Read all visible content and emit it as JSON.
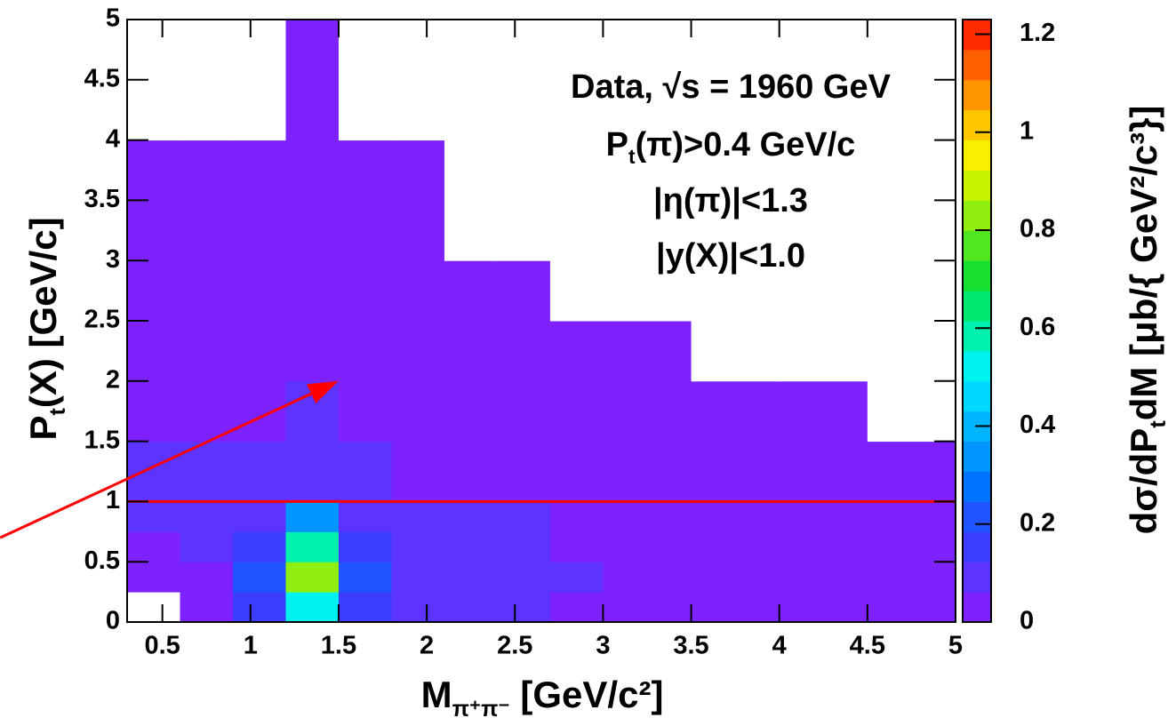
{
  "chart_data": {
    "type": "heatmap",
    "x_label": [
      {
        "text": "M"
      },
      {
        "text": "π⁺π⁻",
        "sub": true
      },
      {
        "text": "  [GeV/c²]"
      }
    ],
    "y_label": [
      {
        "text": "P"
      },
      {
        "text": "t",
        "sub": true
      },
      {
        "text": "(X)  [GeV/c]"
      }
    ],
    "z_label": [
      {
        "text": "dσ/dP"
      },
      {
        "text": "t",
        "sub": true
      },
      {
        "text": "dM  [μb/{ GeV²/c³}]"
      }
    ],
    "annotations": [
      [
        {
          "text": "Data,  √s = 1960 GeV"
        }
      ],
      [
        {
          "text": "P"
        },
        {
          "text": "t",
          "sub": true
        },
        {
          "text": "(π)>0.4 GeV/c"
        }
      ],
      [
        {
          "text": "|η(π)|<1.3"
        }
      ],
      [
        {
          "text": "|y(X)|<1.0"
        }
      ]
    ],
    "x_bins": [
      0.3,
      0.6,
      0.9,
      1.2,
      1.5,
      1.8,
      2.1,
      2.4,
      2.7,
      3.0,
      3.5,
      4.0,
      4.5,
      5.0
    ],
    "y_bins": [
      0,
      0.25,
      0.5,
      0.75,
      1.0,
      1.5,
      2.0,
      2.5,
      3.0,
      4.0,
      5.0
    ],
    "z": [
      [
        0,
        0.02,
        0.15,
        0.5,
        0.15,
        0.1,
        0.08,
        0.07,
        0.06,
        0.05,
        0.04,
        0.03,
        0.02
      ],
      [
        0.01,
        0.05,
        0.2,
        0.85,
        0.2,
        0.12,
        0.1,
        0.08,
        0.07,
        0.05,
        0.04,
        0.03,
        0.02
      ],
      [
        0.03,
        0.07,
        0.15,
        0.6,
        0.15,
        0.12,
        0.1,
        0.08,
        0.06,
        0.05,
        0.04,
        0.02,
        0.02
      ],
      [
        0.07,
        0.08,
        0.12,
        0.35,
        0.12,
        0.1,
        0.08,
        0.07,
        0.05,
        0.04,
        0.03,
        0.02,
        0.01
      ],
      [
        0.1,
        0.08,
        0.08,
        0.12,
        0.08,
        0.06,
        0.05,
        0.04,
        0.03,
        0.02,
        0.02,
        0.01,
        0.01
      ],
      [
        0.06,
        0.05,
        0.05,
        0.07,
        0.05,
        0.04,
        0.03,
        0.02,
        0.02,
        0.01,
        0.01,
        0.01,
        0
      ],
      [
        0.03,
        0.03,
        0.03,
        0.04,
        0.03,
        0.02,
        0.02,
        0.01,
        0.01,
        0.01,
        0,
        0,
        0
      ],
      [
        0.01,
        0.01,
        0.01,
        0.02,
        0.01,
        0.01,
        0.01,
        0.01,
        0,
        0,
        0,
        0,
        0
      ],
      [
        0.005,
        0.005,
        0.005,
        0.005,
        0.005,
        0.005,
        0,
        0,
        0,
        0,
        0,
        0,
        0
      ],
      [
        0,
        0,
        0,
        0.005,
        0,
        0,
        0,
        0,
        0,
        0,
        0,
        0,
        0
      ]
    ],
    "xlim": [
      0.3,
      5
    ],
    "ylim": [
      0,
      5
    ],
    "zlim": [
      0,
      1.23
    ],
    "xticks": [
      0.5,
      1,
      1.5,
      2,
      2.5,
      3,
      3.5,
      4,
      4.5,
      5
    ],
    "yticks": [
      0,
      0.5,
      1,
      1.5,
      2,
      2.5,
      3,
      3.5,
      4,
      4.5,
      5
    ],
    "zticks": [
      0,
      0.2,
      0.4,
      0.6,
      0.8,
      1,
      1.2
    ],
    "colorscale": [
      "#7d22ff",
      "#5c33ff",
      "#3d3dff",
      "#1f54ff",
      "#0073ff",
      "#0095ff",
      "#00b4ff",
      "#00d8ff",
      "#00f2f0",
      "#00f0b0",
      "#00e870",
      "#18e030",
      "#50e620",
      "#90ee10",
      "#c8f400",
      "#f8f000",
      "#ffc800",
      "#ff9600",
      "#ff6000",
      "#ff2a00"
    ],
    "hline": {
      "y": 1,
      "color": "#ff0000"
    },
    "arrow": {
      "from": [
        -0.42,
        0.7
      ],
      "to": [
        1.5,
        2.0
      ],
      "color": "#ff0000"
    }
  }
}
